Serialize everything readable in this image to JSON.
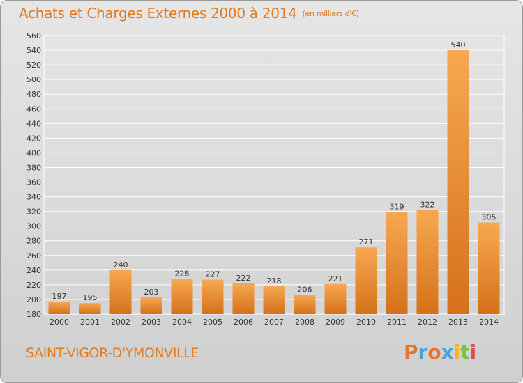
{
  "header": {
    "title": "Achats et Charges Externes 2000 à 2014",
    "subtitle": "(en milliers d'€)"
  },
  "footer": {
    "commune": "SAINT-VIGOR-D'YMONVILLE",
    "logo_text": "Proxiti"
  },
  "colors": {
    "accent": "#e07a1f",
    "bar_light": "#f6a24f",
    "bar_dark": "#d9761c",
    "grid": "#ffffff",
    "logo": [
      "#e8732a",
      "#4aa3d8",
      "#e8732a",
      "#4aa3d8",
      "#f0b429",
      "#7cc242",
      "#e84b4b"
    ]
  },
  "chart_data": {
    "type": "bar",
    "title": "Achats et Charges Externes 2000 à 2014",
    "subtitle": "(en milliers d'€)",
    "xlabel": "",
    "ylabel": "",
    "categories": [
      "2000",
      "2001",
      "2002",
      "2003",
      "2004",
      "2005",
      "2006",
      "2007",
      "2008",
      "2009",
      "2010",
      "2011",
      "2012",
      "2013",
      "2014"
    ],
    "values": [
      197,
      195,
      240,
      203,
      228,
      227,
      222,
      218,
      206,
      221,
      271,
      319,
      322,
      540,
      305
    ],
    "ylim": [
      180,
      560
    ],
    "yticks": [
      180,
      200,
      220,
      240,
      260,
      280,
      300,
      320,
      340,
      360,
      380,
      400,
      420,
      440,
      460,
      480,
      500,
      520,
      540,
      560
    ],
    "grid": true,
    "legend": "none"
  }
}
